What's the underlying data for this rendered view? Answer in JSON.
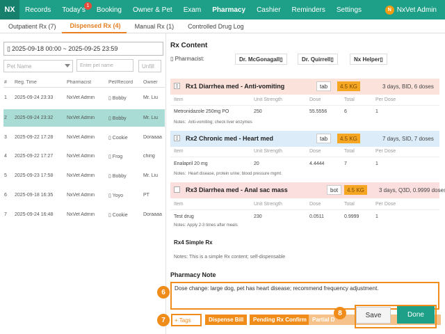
{
  "nav": {
    "logo": "NX",
    "items": [
      "Records",
      "Today's",
      "Booking",
      "Owner & Pet",
      "Exam",
      "Pharmacy",
      "Cashier",
      "Reminders",
      "Settings"
    ],
    "badge": "1",
    "user_initial": "N",
    "user_name": "NxVet Admin"
  },
  "subtabs": [
    "Outpatient Rx (7)",
    "Dispensed Rx (4)",
    "Manual Rx (1)",
    "Controlled Drug Log"
  ],
  "left": {
    "date_range": "2025-09-18 00:00 ~ 2025-09-25 23:59",
    "filter_pet": "Pet Name",
    "filter_search": "Enter pet name",
    "filter_status": "Unfill",
    "columns": [
      "#",
      "Reg. Time",
      "Pharmacist",
      "Pet/Record",
      "Owner"
    ],
    "rows": [
      {
        "n": "1",
        "time": "2025-09-24 23:33",
        "pharmacist": "NxVet Admin",
        "pet": "Bobby",
        "owner": "Mr. Liu"
      },
      {
        "n": "2",
        "time": "2025-09-24 23:32",
        "pharmacist": "NxVet Admin",
        "pet": "Bobby",
        "owner": "Mr. Liu"
      },
      {
        "n": "3",
        "time": "2025-09-22 17:28",
        "pharmacist": "NxVet Admin",
        "pet": "Cookie",
        "owner": "Doraaaa"
      },
      {
        "n": "4",
        "time": "2025-09-22 17:27",
        "pharmacist": "NxVet Admin",
        "pet": "Frog",
        "owner": "ching"
      },
      {
        "n": "5",
        "time": "2025-09-23 17:58",
        "pharmacist": "NxVet Admin",
        "pet": "Bobby",
        "owner": "Mr. Liu"
      },
      {
        "n": "6",
        "time": "2025-09-18 16:35",
        "pharmacist": "NxVet Admin",
        "pet": "Yoyo",
        "owner": "PT"
      },
      {
        "n": "7",
        "time": "2025-09-24 16:48",
        "pharmacist": "NxVet Admin",
        "pet": "Cookie",
        "owner": "Doraaaa"
      }
    ]
  },
  "rx": {
    "title": "Rx Content",
    "pharmacist_label": "Pharmacist:",
    "pharmacists": [
      "Dr. McGonagall",
      "Dr. Quirrell",
      "Nx Helper"
    ],
    "columns": [
      "Item",
      "Unit Strength",
      "Dose",
      "Total",
      "Per Dose"
    ],
    "notes_label": "Notes:",
    "items": [
      {
        "name": "Rx1  Diarrhea med - Anti-vomiting",
        "form": "tab",
        "weight": "4.5 KG",
        "dosing": "3 days, BID, 6 doses",
        "color": "#fbe3dc",
        "item": "Metronidazole 250mg PO",
        "strength": "250",
        "dose": "55.5556",
        "total": "6",
        "per_dose": "1",
        "notes": "Anti-vomiting; check liver enzymes"
      },
      {
        "name": "Rx2  Chronic med - Heart med",
        "form": "tab",
        "weight": "4.5 KG",
        "dosing": "7 days, SID, 7 doses",
        "color": "#dcedf9",
        "item": "Enalapril 20 mg",
        "strength": "20",
        "dose": "4.4444",
        "total": "7",
        "per_dose": "1",
        "notes": "Heart disease, protein urine; blood pressure mgmt."
      },
      {
        "name": "Rx3  Diarrhea med - Anal sac mass",
        "form": "bot",
        "weight": "4.5 KG",
        "dosing": "3 days, Q3D, 0.9999 doses",
        "color": "#fbdede",
        "item": "Test drug",
        "strength": "230",
        "dose": "0.0511",
        "total": "0.9999",
        "per_dose": "1",
        "notes": "Apply 2-3 times after meals"
      }
    ],
    "rx4_name": "Rx4  Simple Rx",
    "rx4_notes": "Notes: This is a simple Rx content; self-dispensable"
  },
  "pharmacy_note": {
    "title": "Pharmacy Note",
    "text": "Dose change: large dog, pet has heart disease; recommend frequency adjustment."
  },
  "actions": {
    "tags": "+ Tags",
    "dispense_bill": "Dispense Bill",
    "pending_confirm": "Pending Rx Confirm",
    "partial": "Partial D",
    "save": "Save",
    "done": "Done"
  },
  "markers": [
    "6",
    "7",
    "8"
  ]
}
